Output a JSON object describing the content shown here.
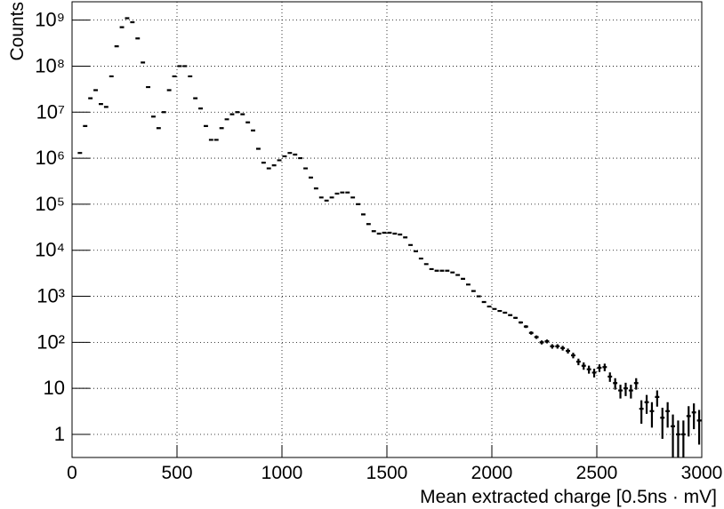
{
  "chart_data": {
    "type": "histogram",
    "x_label": "Mean extracted charge [0.5ns · mV]",
    "y_label": "Counts",
    "log_y": true,
    "grid": true,
    "color": "#000000",
    "xlim": [
      0,
      3000
    ],
    "xticks": [
      0,
      500,
      1000,
      1500,
      2000,
      2500,
      3000
    ],
    "ylim": [
      0.315,
      2500000000
    ],
    "yticks": [
      1,
      10,
      {
        "value": 100,
        "label": "10²"
      },
      {
        "value": 1000,
        "label": "10³"
      },
      {
        "value": 10000,
        "label": "10⁴"
      },
      {
        "value": 100000,
        "label": "10⁵"
      },
      {
        "value": 1000000,
        "label": "10⁶"
      },
      {
        "value": 10000000,
        "label": "10⁷"
      },
      {
        "value": 100000000,
        "label": "10⁸"
      },
      {
        "value": 1000000000,
        "label": "10⁹"
      }
    ],
    "bins": [
      0,
      25,
      50,
      75,
      100,
      125,
      150,
      175,
      200,
      225,
      250,
      275,
      300,
      325,
      350,
      375,
      400,
      425,
      450,
      475,
      500,
      525,
      550,
      575,
      600,
      625,
      650,
      675,
      700,
      725,
      750,
      775,
      800,
      825,
      850,
      875,
      900,
      925,
      950,
      975,
      1000,
      1025,
      1050,
      1075,
      1100,
      1125,
      1150,
      1175,
      1200,
      1225,
      1250,
      1275,
      1300,
      1325,
      1350,
      1375,
      1400,
      1425,
      1450,
      1475,
      1500,
      1525,
      1550,
      1575,
      1600,
      1625,
      1650,
      1675,
      1700,
      1725,
      1750,
      1775,
      1800,
      1825,
      1850,
      1875,
      1900,
      1925,
      1950,
      1975,
      2000,
      2025,
      2050,
      2075,
      2100,
      2125,
      2150,
      2175,
      2200,
      2225,
      2250,
      2275,
      2300,
      2325,
      2350,
      2375,
      2400,
      2425,
      2450,
      2475,
      2500,
      2525,
      2550,
      2575,
      2600,
      2625,
      2650,
      2675,
      2700,
      2725,
      2750,
      2775,
      2800,
      2825,
      2850,
      2875,
      2900,
      2925,
      2950,
      2975,
      3000
    ],
    "values": [
      null,
      1300000,
      5000000,
      20000000,
      30000000,
      15000000,
      13000000,
      60000000,
      270000000,
      700000000,
      1100000000,
      900000000,
      400000000,
      120000000,
      35000000,
      8000000,
      4500000,
      10000000,
      30000000,
      60000000,
      100000000,
      100000000,
      60000000,
      20000000,
      12000000,
      5000000,
      2500000,
      2500000,
      4500000,
      7000000,
      9000000,
      10000000,
      9000000,
      6000000,
      4000000,
      1600000,
      800000,
      600000,
      700000,
      900000,
      1100000,
      1300000,
      1200000,
      1000000,
      600000,
      380000,
      220000,
      140000,
      120000,
      140000,
      170000,
      180000,
      180000,
      140000,
      100000,
      60000,
      37000,
      26000,
      23000,
      24000,
      24000,
      23000,
      22000,
      19000,
      13000,
      9500,
      6600,
      5000,
      3900,
      3600,
      3600,
      3600,
      3300,
      2900,
      2400,
      1800,
      1300,
      1000,
      750,
      600,
      530,
      480,
      440,
      390,
      340,
      270,
      220,
      160,
      130,
      100,
      105,
      82,
      82,
      75,
      65,
      52,
      38,
      31,
      26,
      22,
      28,
      29,
      18,
      13,
      9,
      10,
      9,
      13,
      3.6,
      5,
      3.2,
      6.5,
      2.3,
      3.2,
      1.5,
      1,
      1,
      2.5,
      3,
      2
    ],
    "errors": [
      null,
      1140,
      2240,
      4470,
      5480,
      3870,
      3610,
      7750,
      16400,
      26500,
      33200,
      30000,
      20000,
      11000,
      5920,
      2830,
      2120,
      3160,
      5480,
      7750,
      10000,
      10000,
      7750,
      4470,
      3460,
      2240,
      1580,
      1580,
      2120,
      2650,
      3000,
      3160,
      3000,
      2450,
      2000,
      1260,
      890,
      770,
      840,
      950,
      1050,
      1140,
      1100,
      1000,
      770,
      620,
      470,
      370,
      350,
      370,
      410,
      420,
      420,
      370,
      320,
      240,
      190,
      160,
      150,
      150,
      150,
      150,
      150,
      140,
      110,
      97,
      81,
      71,
      62,
      60,
      60,
      60,
      57,
      54,
      49,
      42,
      36,
      32,
      27,
      24,
      23,
      22,
      21,
      20,
      18,
      16,
      15,
      13,
      11,
      10,
      10,
      9,
      9,
      8.7,
      8.1,
      7.2,
      6.2,
      5.6,
      5.1,
      4.7,
      5.3,
      5.4,
      4.2,
      3.6,
      3,
      3.2,
      3,
      3.6,
      1.9,
      2.2,
      1.8,
      2.5,
      1.5,
      1.8,
      1.2,
      1,
      1,
      1.6,
      1.7,
      1.4
    ]
  }
}
